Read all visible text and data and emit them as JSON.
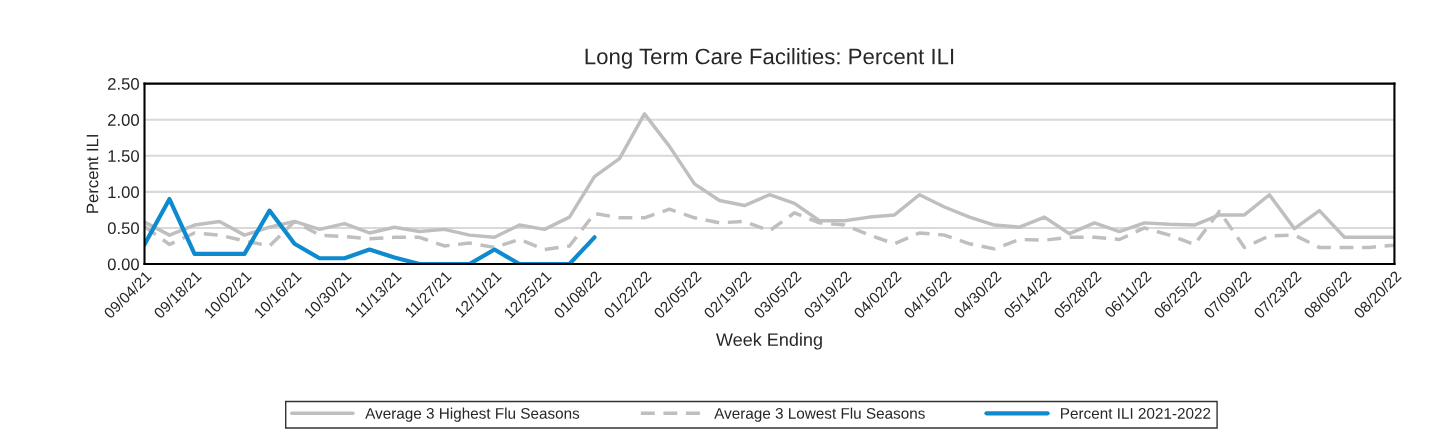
{
  "chart_data": {
    "type": "line",
    "title": "Long Term Care Facilities: Percent ILI",
    "xlabel": "Week Ending",
    "ylabel": "Percent ILI",
    "categories": [
      "09/04/21",
      null,
      "09/18/21",
      null,
      "10/02/21",
      null,
      "10/16/21",
      null,
      "10/30/21",
      null,
      "11/13/21",
      null,
      "11/27/21",
      null,
      "12/11/21",
      null,
      "12/25/21",
      null,
      "01/08/22",
      null,
      "01/22/22",
      null,
      "02/05/22",
      null,
      "02/19/22",
      null,
      "03/05/22",
      null,
      "03/19/22",
      null,
      "04/02/22",
      null,
      "04/16/22",
      null,
      "04/30/22",
      null,
      "05/14/22",
      null,
      "05/28/22",
      null,
      "06/11/22",
      null,
      "06/25/22",
      null,
      "07/09/22",
      null,
      "07/23/22",
      null,
      "08/06/22",
      null,
      "08/20/22"
    ],
    "series": [
      {
        "name": "Average 3 Highest Flu Seasons",
        "color": "#bfbfbf",
        "line_style": "solid",
        "values": [
          0.58,
          0.4,
          0.54,
          0.59,
          0.4,
          0.51,
          0.59,
          0.48,
          0.56,
          0.43,
          0.51,
          0.45,
          0.48,
          0.4,
          0.37,
          0.54,
          0.48,
          0.65,
          1.21,
          1.46,
          2.08,
          1.63,
          1.11,
          0.88,
          0.81,
          0.96,
          0.84,
          0.6,
          0.6,
          0.65,
          0.68,
          0.96,
          0.79,
          0.65,
          0.54,
          0.51,
          0.65,
          0.42,
          0.57,
          0.45,
          0.57,
          0.55,
          0.54,
          0.68,
          0.68,
          0.96,
          0.49,
          0.74,
          0.37,
          0.37,
          0.37
        ]
      },
      {
        "name": "Average 3 Lowest Flu Seasons",
        "color": "#bfbfbf",
        "line_style": "dashed",
        "values": [
          0.52,
          0.27,
          0.43,
          0.4,
          0.32,
          0.25,
          0.59,
          0.4,
          0.38,
          0.35,
          0.37,
          0.37,
          0.25,
          0.29,
          0.23,
          0.34,
          0.2,
          0.25,
          0.7,
          0.64,
          0.64,
          0.76,
          0.64,
          0.57,
          0.59,
          0.46,
          0.71,
          0.57,
          0.54,
          0.4,
          0.28,
          0.43,
          0.4,
          0.28,
          0.21,
          0.34,
          0.33,
          0.37,
          0.37,
          0.34,
          0.5,
          0.4,
          0.27,
          0.73,
          0.23,
          0.39,
          0.4,
          0.23,
          0.23,
          0.23,
          0.26
        ]
      },
      {
        "name": "Percent ILI 2021-2022",
        "color": "#0e8bcf",
        "line_style": "solid",
        "values": [
          0.27,
          0.9,
          0.14,
          0.14,
          0.14,
          0.74,
          0.28,
          0.08,
          0.08,
          0.2,
          0.09,
          0.0,
          0.0,
          0.0,
          0.2,
          0.0,
          0.0,
          0.0,
          0.37,
          null,
          null,
          null,
          null,
          null,
          null,
          null,
          null,
          null,
          null,
          null,
          null,
          null,
          null,
          null,
          null,
          null,
          null,
          null,
          null,
          null,
          null,
          null,
          null,
          null,
          null,
          null,
          null,
          null,
          null,
          null,
          null
        ]
      }
    ],
    "ylim": [
      0,
      2.5
    ],
    "yticks": [
      {
        "value": 0,
        "label": "0.00"
      },
      {
        "value": 0.5,
        "label": "0.50"
      },
      {
        "value": 1,
        "label": "1.00"
      },
      {
        "value": 1.5,
        "label": "1.50"
      },
      {
        "value": 2,
        "label": "2.00"
      },
      {
        "value": 2.5,
        "label": "2.50"
      }
    ],
    "grid": "y",
    "legend": "bottom"
  }
}
